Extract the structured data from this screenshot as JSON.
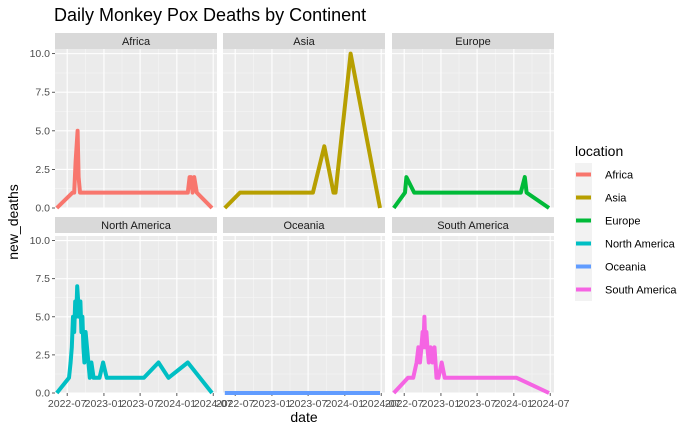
{
  "chart_data": {
    "type": "line",
    "title": "Daily Monkey Pox Deaths by Continent",
    "xlabel": "date",
    "ylabel": "new_deaths",
    "legend_title": "location",
    "legend_position": "right",
    "grid": true,
    "facets": "wrap by location, 3 columns",
    "xlim": [
      "2022-05-01",
      "2024-07-20"
    ],
    "ylim": [
      0,
      10.3
    ],
    "x_ticks": [
      "2022-07",
      "2023-01",
      "2023-07",
      "2024-01",
      "2024-07"
    ],
    "y_ticks": [
      "0.0",
      "2.5",
      "5.0",
      "7.5",
      "10.0"
    ],
    "series": [
      {
        "name": "Africa",
        "color": "#F8766D",
        "x": [
          "2022-05-10",
          "2022-07-28",
          "2022-08-05",
          "2022-08-12",
          "2022-08-22",
          "2022-08-27",
          "2022-09-03",
          "2022-09-08",
          "2022-09-16",
          "2022-10-05",
          "2022-11-20",
          "2022-12-10",
          "2023-02-05",
          "2023-02-25",
          "2023-04-10",
          "2023-07-10",
          "2023-11-01",
          "2023-12-12",
          "2024-02-25",
          "2024-03-05",
          "2024-03-12",
          "2024-03-20",
          "2024-03-28",
          "2024-04-10",
          "2024-06-25"
        ],
        "y": [
          0,
          1,
          1,
          3,
          5,
          2,
          1,
          1,
          1,
          1,
          1,
          1,
          1,
          1,
          1,
          1,
          1,
          1,
          1,
          2,
          2,
          1,
          2,
          1,
          0
        ]
      },
      {
        "name": "Asia",
        "color": "#B79F00",
        "x": [
          "2022-05-10",
          "2022-07-25",
          "2023-05-20",
          "2023-07-25",
          "2023-09-20",
          "2023-11-05",
          "2023-11-15",
          "2024-01-30",
          "2024-06-25"
        ],
        "y": [
          0,
          1,
          1,
          1,
          4,
          1,
          1,
          10,
          0
        ]
      },
      {
        "name": "Europe",
        "color": "#00BA38",
        "x": [
          "2022-05-10",
          "2022-07-05",
          "2022-07-12",
          "2022-08-20",
          "2022-09-25",
          "2022-11-25",
          "2023-02-05",
          "2023-03-15",
          "2023-07-10",
          "2024-02-05",
          "2024-02-25",
          "2024-03-05",
          "2024-06-25"
        ],
        "y": [
          0,
          1,
          2,
          1,
          1,
          1,
          1,
          1,
          1,
          1,
          2,
          1,
          0
        ]
      },
      {
        "name": "North America",
        "color": "#00BFC4",
        "x": [
          "2022-05-10",
          "2022-07-10",
          "2022-07-18",
          "2022-07-24",
          "2022-07-30",
          "2022-08-05",
          "2022-08-10",
          "2022-08-15",
          "2022-08-20",
          "2022-08-25",
          "2022-08-30",
          "2022-09-05",
          "2022-09-10",
          "2022-09-15",
          "2022-09-20",
          "2022-09-25",
          "2022-10-01",
          "2022-10-08",
          "2022-10-15",
          "2022-10-22",
          "2022-10-30",
          "2022-11-10",
          "2022-11-25",
          "2022-12-10",
          "2022-12-28",
          "2023-01-15",
          "2023-02-10",
          "2023-03-15",
          "2023-07-20",
          "2023-10-01",
          "2023-11-20",
          "2024-02-25",
          "2024-06-25"
        ],
        "y": [
          0,
          1,
          2,
          3,
          5,
          4,
          6,
          5,
          7,
          6,
          5,
          6,
          4,
          5,
          3,
          2,
          4,
          3,
          2,
          1,
          2,
          1,
          1,
          1,
          2,
          1,
          1,
          1,
          1,
          2,
          1,
          2,
          0
        ]
      },
      {
        "name": "Oceania",
        "color": "#619CFF",
        "x": [
          "2022-05-10",
          "2024-06-25"
        ],
        "y": [
          0,
          0
        ]
      },
      {
        "name": "South America",
        "color": "#F564E3",
        "x": [
          "2022-05-10",
          "2022-07-20",
          "2022-08-15",
          "2022-09-01",
          "2022-09-10",
          "2022-09-18",
          "2022-09-25",
          "2022-10-01",
          "2022-10-05",
          "2022-10-10",
          "2022-10-15",
          "2022-10-20",
          "2022-10-25",
          "2022-11-01",
          "2022-11-10",
          "2022-11-20",
          "2022-11-30",
          "2022-12-10",
          "2022-12-20",
          "2023-01-05",
          "2023-01-20",
          "2023-02-10",
          "2023-03-15",
          "2023-04-20",
          "2023-07-10",
          "2024-01-15",
          "2024-06-25"
        ],
        "y": [
          0,
          1,
          1,
          2,
          3,
          2,
          3,
          4,
          3,
          5,
          3,
          4,
          3,
          2,
          3,
          2,
          3,
          1,
          1,
          2,
          1,
          1,
          1,
          1,
          1,
          1,
          0
        ]
      }
    ]
  }
}
